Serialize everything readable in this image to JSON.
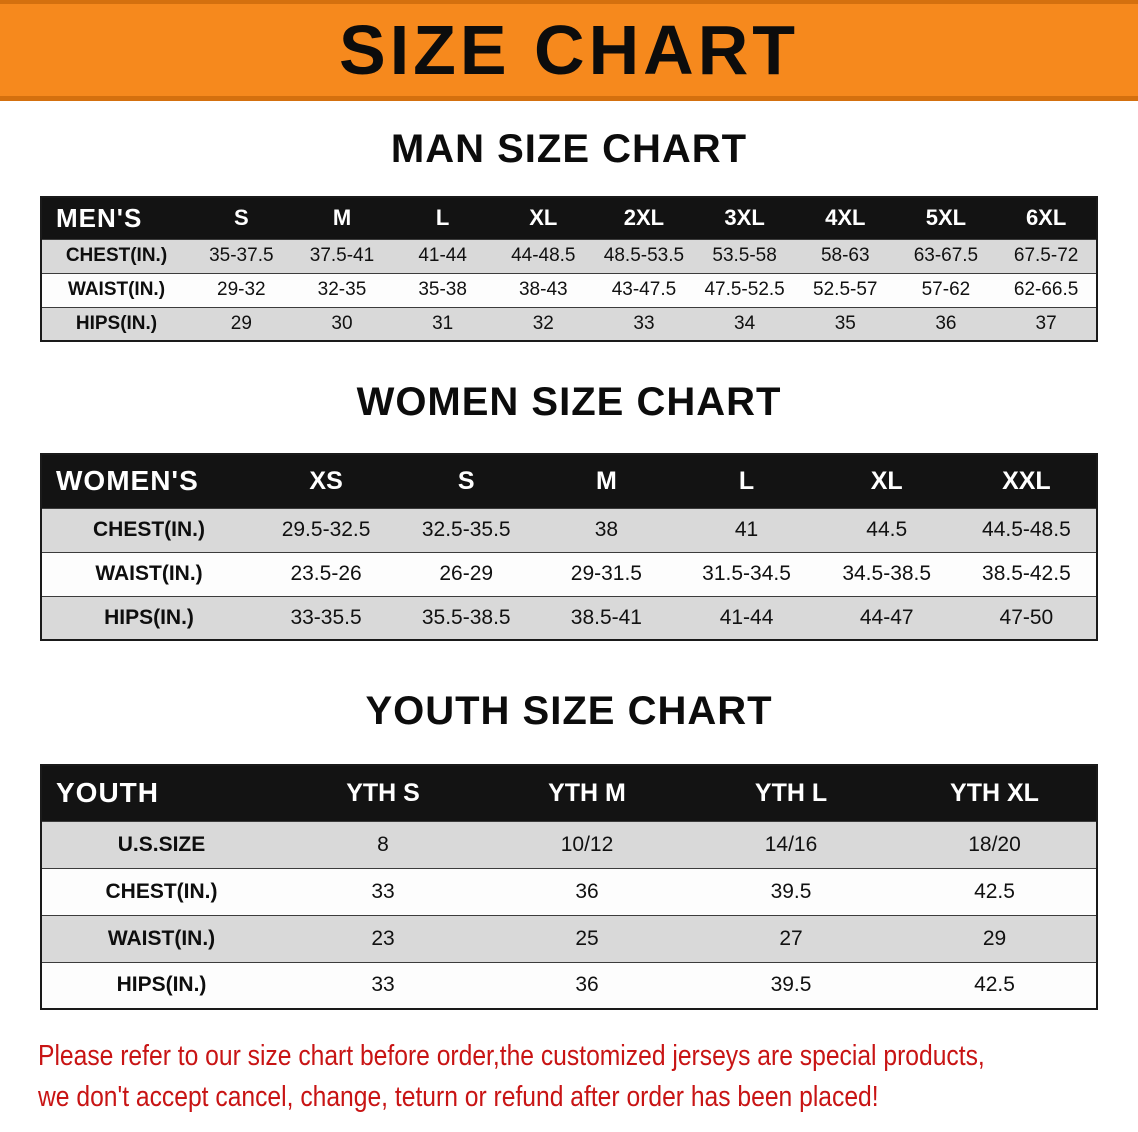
{
  "banner": {
    "title": "SIZE CHART"
  },
  "colors": {
    "banner_bg": "#f6891d",
    "banner_edge": "#d4700e",
    "header_bg": "#131313",
    "row_alt": "#d9d9d9",
    "row_base": "#fdfdfd",
    "footer_text": "#c81414"
  },
  "men": {
    "heading": "MAN SIZE CHART",
    "corner_label": "MEN'S",
    "columns": [
      "S",
      "M",
      "L",
      "XL",
      "2XL",
      "3XL",
      "4XL",
      "5XL",
      "6XL"
    ],
    "rows": [
      {
        "label": "CHEST(IN.)",
        "values": [
          "35-37.5",
          "37.5-41",
          "41-44",
          "44-48.5",
          "48.5-53.5",
          "53.5-58",
          "58-63",
          "63-67.5",
          "67.5-72"
        ]
      },
      {
        "label": "WAIST(IN.)",
        "values": [
          "29-32",
          "32-35",
          "35-38",
          "38-43",
          "43-47.5",
          "47.5-52.5",
          "52.5-57",
          "57-62",
          "62-66.5"
        ]
      },
      {
        "label": "HIPS(IN.)",
        "values": [
          "29",
          "30",
          "31",
          "32",
          "33",
          "34",
          "35",
          "36",
          "37"
        ]
      }
    ]
  },
  "women": {
    "heading": "WOMEN SIZE CHART",
    "corner_label": "WOMEN'S",
    "columns": [
      "XS",
      "S",
      "M",
      "L",
      "XL",
      "XXL"
    ],
    "rows": [
      {
        "label": "CHEST(IN.)",
        "values": [
          "29.5-32.5",
          "32.5-35.5",
          "38",
          "41",
          "44.5",
          "44.5-48.5"
        ]
      },
      {
        "label": "WAIST(IN.)",
        "values": [
          "23.5-26",
          "26-29",
          "29-31.5",
          "31.5-34.5",
          "34.5-38.5",
          "38.5-42.5"
        ]
      },
      {
        "label": "HIPS(IN.)",
        "values": [
          "33-35.5",
          "35.5-38.5",
          "38.5-41",
          "41-44",
          "44-47",
          "47-50"
        ]
      }
    ]
  },
  "youth": {
    "heading": "YOUTH SIZE CHART",
    "corner_label": "YOUTH",
    "columns": [
      "YTH S",
      "YTH M",
      "YTH L",
      "YTH XL"
    ],
    "rows": [
      {
        "label": "U.S.SIZE",
        "values": [
          "8",
          "10/12",
          "14/16",
          "18/20"
        ]
      },
      {
        "label": "CHEST(IN.)",
        "values": [
          "33",
          "36",
          "39.5",
          "42.5"
        ]
      },
      {
        "label": "WAIST(IN.)",
        "values": [
          "23",
          "25",
          "27",
          "29"
        ]
      },
      {
        "label": "HIPS(IN.)",
        "values": [
          "33",
          "36",
          "39.5",
          "42.5"
        ]
      }
    ]
  },
  "footer": {
    "line1": "Please refer to our size chart before order,the customized jerseys are special products,",
    "line2": "we don't accept cancel, change, teturn or refund after order has been placed!"
  }
}
